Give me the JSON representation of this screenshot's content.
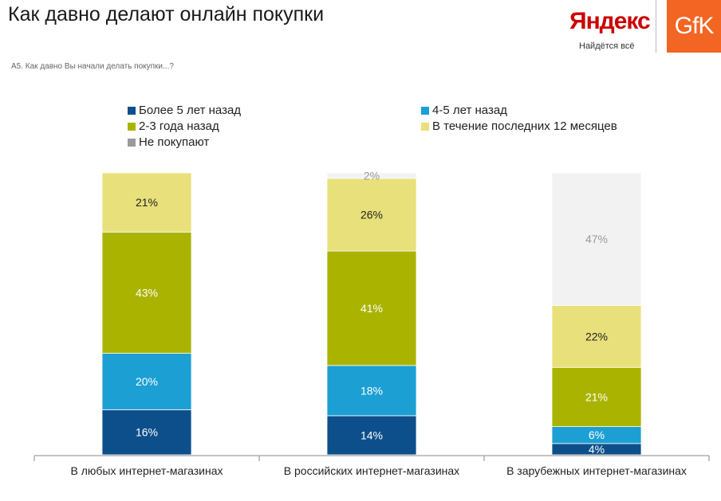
{
  "header": {
    "title": "Как давно делают онлайн покупки",
    "question": "А5. Как давно Вы начали делать покупки...?",
    "yandex_logo": "Яндекс",
    "yandex_tagline": "Найдётся всё",
    "gfk_logo": "GfK"
  },
  "colors": {
    "more5": "#0d4f8b",
    "y45": "#1ca0d4",
    "y23": "#aab400",
    "last12": "#e8e07a",
    "notbuy": "#f2f2f2",
    "gfk": "#f26522",
    "yandex": "#cc0000"
  },
  "chart_data": {
    "type": "bar",
    "stacked": true,
    "normalized": true,
    "title": "Как давно делают онлайн покупки",
    "categories": [
      "В любых интернет-магазинах",
      "В российских интернет-магазинах",
      "В зарубежных интернет-магазинах"
    ],
    "series": [
      {
        "name": "Более 5 лет назад",
        "key": "more5",
        "values": [
          16,
          14,
          4
        ]
      },
      {
        "name": "4-5 лет назад",
        "key": "y45",
        "values": [
          20,
          18,
          6
        ]
      },
      {
        "name": "2-3 года назад",
        "key": "y23",
        "values": [
          43,
          41,
          21
        ]
      },
      {
        "name": "В течение последних 12 месяцев",
        "key": "last12",
        "values": [
          21,
          26,
          22
        ]
      },
      {
        "name": "Не покупают",
        "key": "notbuy",
        "values": [
          0,
          2,
          47
        ]
      }
    ],
    "labels": [
      [
        "16%",
        "20%",
        "43%",
        "21%",
        ""
      ],
      [
        "14%",
        "18%",
        "41%",
        "26%",
        "2%"
      ],
      [
        "4%",
        "6%",
        "21%",
        "22%",
        "47%"
      ]
    ],
    "legend_position": "top",
    "ylim": [
      0,
      100
    ]
  }
}
